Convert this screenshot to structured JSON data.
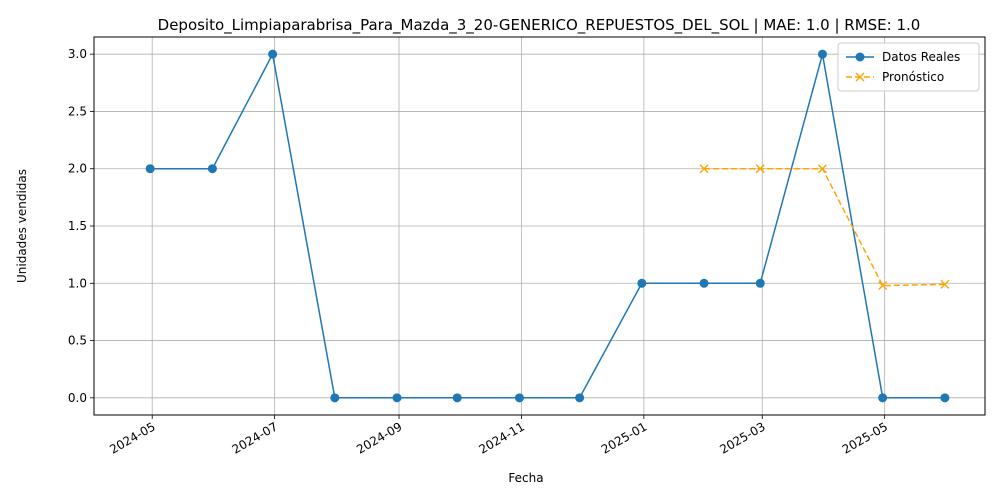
{
  "chart_data": {
    "type": "line",
    "title": "Deposito_Limpiaparabrisa_Para_Mazda_3_20-GENERICO_REPUESTOS_DEL_SOL | MAE: 1.0 | RMSE: 1.0",
    "xlabel": "Fecha",
    "ylabel": "Unidades vendidas",
    "grid": true,
    "legend_position": "top-right",
    "x_ticks": [
      "2024-05",
      "2024-07",
      "2024-09",
      "2024-11",
      "2025-01",
      "2025-03",
      "2025-05"
    ],
    "y_ticks": [
      "0.0",
      "0.5",
      "1.0",
      "1.5",
      "2.0",
      "2.5",
      "3.0"
    ],
    "ylim": [
      -0.15,
      3.15
    ],
    "xlim": [
      "2024-04-02",
      "2025-06-20"
    ],
    "series": [
      {
        "name": "Datos Reales",
        "color": "#1f77b4",
        "style": "solid",
        "marker": "circle",
        "x": [
          "2024-04-30",
          "2024-05-31",
          "2024-06-30",
          "2024-07-31",
          "2024-08-31",
          "2024-09-30",
          "2024-10-31",
          "2024-11-30",
          "2024-12-31",
          "2025-01-31",
          "2025-02-28",
          "2025-03-31",
          "2025-04-30",
          "2025-05-31"
        ],
        "values": [
          2,
          2,
          3,
          0,
          0,
          0,
          0,
          0,
          1,
          1,
          1,
          3,
          0,
          0
        ]
      },
      {
        "name": "Pronóstico",
        "color": "#ffa500",
        "style": "dashed",
        "marker": "x",
        "x": [
          "2025-01-31",
          "2025-02-28",
          "2025-03-31",
          "2025-04-30",
          "2025-05-31"
        ],
        "values": [
          2.0,
          2.0,
          2.0,
          0.98,
          0.99
        ]
      }
    ]
  }
}
